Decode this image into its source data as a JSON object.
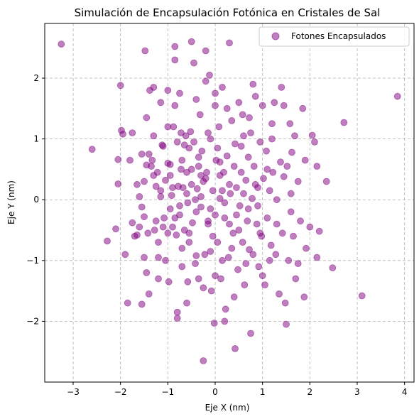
{
  "chart_data": {
    "type": "scatter",
    "title": "Simulación de Encapsulación Fotónica en Cristales de Sal",
    "xlabel": "Eje X (nm)",
    "ylabel": "Eje Y (nm)",
    "xlim": [
      -3.6,
      4.2
    ],
    "ylim": [
      -3.0,
      2.9
    ],
    "xticks": [
      -3,
      -2,
      -1,
      0,
      1,
      2,
      3,
      4
    ],
    "yticks": [
      -2,
      -1,
      0,
      1,
      2
    ],
    "xtick_labels": [
      "−3",
      "−2",
      "−1",
      "0",
      "1",
      "2",
      "3",
      "4"
    ],
    "ytick_labels": [
      "−2",
      "−1",
      "0",
      "1",
      "2"
    ],
    "grid": true,
    "legend": "top-right",
    "series": [
      {
        "name": "Fotones Encapsulados",
        "color": "#800080",
        "alpha": 0.5,
        "points": [
          [
            -3.25,
            2.56
          ],
          [
            -2.6,
            0.83
          ],
          [
            -2.28,
            -0.68
          ],
          [
            -2.1,
            -0.48
          ],
          [
            -2.05,
            0.66
          ],
          [
            -2.05,
            0.26
          ],
          [
            -2.0,
            1.88
          ],
          [
            -1.98,
            1.14
          ],
          [
            -1.95,
            1.08
          ],
          [
            -1.9,
            -0.9
          ],
          [
            -1.85,
            -1.7
          ],
          [
            -1.8,
            0.65
          ],
          [
            -1.75,
            -0.38
          ],
          [
            -1.7,
            -0.6
          ],
          [
            -1.65,
            -0.58
          ],
          [
            -1.65,
            0.25
          ],
          [
            -1.6,
            -0.45
          ],
          [
            -1.55,
            0.75
          ],
          [
            -1.55,
            -0.12
          ],
          [
            -1.55,
            -1.72
          ],
          [
            -1.5,
            -0.28
          ],
          [
            -1.5,
            0.3
          ],
          [
            -1.5,
            -0.95
          ],
          [
            -1.48,
            2.45
          ],
          [
            -1.45,
            1.35
          ],
          [
            -1.45,
            0.57
          ],
          [
            -1.42,
            -0.55
          ],
          [
            -1.4,
            0.75
          ],
          [
            -1.4,
            -1.55
          ],
          [
            -1.38,
            1.8
          ],
          [
            -1.35,
            0.55
          ],
          [
            -1.33,
            0.65
          ],
          [
            -1.3,
            1.85
          ],
          [
            -1.3,
            1.05
          ],
          [
            -1.28,
            -0.5
          ],
          [
            -1.25,
            0.22
          ],
          [
            -1.25,
            -0.35
          ],
          [
            -1.22,
            0.45
          ],
          [
            -1.2,
            -0.7
          ],
          [
            -1.2,
            -1.3
          ],
          [
            -1.15,
            0.05
          ],
          [
            -1.15,
            1.6
          ],
          [
            -1.12,
            0.9
          ],
          [
            -1.1,
            0.88
          ],
          [
            -1.08,
            -0.3
          ],
          [
            -1.05,
            -1.0
          ],
          [
            -1.05,
            0.32
          ],
          [
            -1.0,
            1.8
          ],
          [
            -1.0,
            -0.55
          ],
          [
            -1.0,
            0.6
          ],
          [
            -0.98,
            -1.35
          ],
          [
            -0.95,
            -0.15
          ],
          [
            -0.95,
            0.4
          ],
          [
            -0.92,
            0.07
          ],
          [
            -0.9,
            -0.45
          ],
          [
            -0.88,
            1.2
          ],
          [
            -0.85,
            2.52
          ],
          [
            -0.85,
            2.3
          ],
          [
            -0.85,
            1.55
          ],
          [
            -0.82,
            -0.58
          ],
          [
            -0.8,
            -1.85
          ],
          [
            -0.8,
            0.95
          ],
          [
            -0.78,
            0.22
          ],
          [
            -0.75,
            1.75
          ],
          [
            -0.75,
            -0.25
          ],
          [
            -0.72,
            1.1
          ],
          [
            -0.7,
            0.65
          ],
          [
            -0.7,
            -0.8
          ],
          [
            -0.68,
            0.2
          ],
          [
            -0.65,
            -0.5
          ],
          [
            -0.62,
            1.05
          ],
          [
            -0.6,
            0.45
          ],
          [
            -0.6,
            -1.7
          ],
          [
            -0.58,
            -0.05
          ],
          [
            -0.55,
            0.85
          ],
          [
            -0.55,
            -0.55
          ],
          [
            -0.52,
            1.12
          ],
          [
            -0.5,
            0.25
          ],
          [
            -0.5,
            2.6
          ],
          [
            -0.48,
            -0.38
          ],
          [
            -0.45,
            0.95
          ],
          [
            -0.45,
            2.25
          ],
          [
            -0.42,
            0.0
          ],
          [
            -0.4,
            -0.92
          ],
          [
            -0.38,
            0.18
          ],
          [
            -0.35,
            0.55
          ],
          [
            -0.35,
            -1.3
          ],
          [
            -0.32,
            1.4
          ],
          [
            -0.3,
            -0.12
          ],
          [
            -0.28,
            0.8
          ],
          [
            -0.25,
            -2.65
          ],
          [
            -0.25,
            0.3
          ],
          [
            -0.22,
            -0.9
          ],
          [
            -0.2,
            2.45
          ],
          [
            -0.18,
            0.45
          ],
          [
            -0.15,
            -0.4
          ],
          [
            -0.12,
            2.05
          ],
          [
            -0.1,
            1.0
          ],
          [
            -0.08,
            -1.5
          ],
          [
            -0.05,
            0.15
          ],
          [
            -0.02,
            -2.03
          ],
          [
            0.0,
            1.55
          ],
          [
            0.0,
            -0.25
          ],
          [
            0.02,
            0.65
          ],
          [
            0.05,
            -0.7
          ],
          [
            0.08,
            1.2
          ],
          [
            0.1,
            0.02
          ],
          [
            0.12,
            -1.3
          ],
          [
            0.15,
            1.85
          ],
          [
            0.18,
            0.45
          ],
          [
            0.2,
            -0.3
          ],
          [
            0.22,
            -1.8
          ],
          [
            0.25,
            0.72
          ],
          [
            0.28,
            -0.95
          ],
          [
            0.3,
            2.58
          ],
          [
            0.32,
            0.1
          ],
          [
            0.35,
            1.3
          ],
          [
            0.38,
            -0.55
          ],
          [
            0.4,
            0.55
          ],
          [
            0.42,
            -2.45
          ],
          [
            0.45,
            0.2
          ],
          [
            0.48,
            -1.15
          ],
          [
            0.5,
            1.6
          ],
          [
            0.52,
            -0.1
          ],
          [
            0.55,
            0.88
          ],
          [
            0.58,
            -0.7
          ],
          [
            0.6,
            1.05
          ],
          [
            0.62,
            -1.4
          ],
          [
            0.65,
            0.32
          ],
          [
            0.68,
            -0.35
          ],
          [
            0.7,
            0.7
          ],
          [
            0.72,
            1.35
          ],
          [
            0.75,
            -2.2
          ],
          [
            0.78,
            0.02
          ],
          [
            0.8,
            -0.9
          ],
          [
            0.82,
            0.55
          ],
          [
            0.85,
            1.7
          ],
          [
            0.88,
            -0.4
          ],
          [
            0.9,
            0.2
          ],
          [
            0.92,
            -1.1
          ],
          [
            0.95,
            0.95
          ],
          [
            0.98,
            -0.6
          ],
          [
            1.0,
            1.55
          ],
          [
            1.02,
            0.35
          ],
          [
            1.05,
            -1.4
          ],
          [
            1.08,
            0.8
          ],
          [
            1.1,
            -0.3
          ],
          [
            1.15,
            0.15
          ],
          [
            1.18,
            -0.75
          ],
          [
            1.2,
            1.25
          ],
          [
            1.22,
            0.45
          ],
          [
            1.25,
            1.6
          ],
          [
            1.28,
            -0.9
          ],
          [
            1.3,
            0.0
          ],
          [
            1.35,
            -1.55
          ],
          [
            1.38,
            0.62
          ],
          [
            1.4,
            1.85
          ],
          [
            1.42,
            -0.55
          ],
          [
            1.45,
            0.38
          ],
          [
            1.48,
            -1.7
          ],
          [
            1.5,
            -2.05
          ],
          [
            1.52,
            0.55
          ],
          [
            1.55,
            -1.0
          ],
          [
            1.58,
            1.25
          ],
          [
            1.6,
            -0.2
          ],
          [
            1.62,
            0.78
          ],
          [
            1.65,
            -0.6
          ],
          [
            1.68,
            1.05
          ],
          [
            1.7,
            -1.3
          ],
          [
            1.75,
            0.3
          ],
          [
            1.8,
            -0.35
          ],
          [
            1.85,
            1.5
          ],
          [
            1.88,
            -1.6
          ],
          [
            1.9,
            0.65
          ],
          [
            1.92,
            -0.8
          ],
          [
            2.0,
            -0.45
          ],
          [
            2.05,
            1.06
          ],
          [
            2.1,
            0.95
          ],
          [
            2.15,
            -0.95
          ],
          [
            2.15,
            0.55
          ],
          [
            2.2,
            -0.52
          ],
          [
            2.35,
            0.3
          ],
          [
            2.48,
            -1.12
          ],
          [
            2.72,
            1.27
          ],
          [
            3.1,
            -1.58
          ],
          [
            3.85,
            1.7
          ],
          [
            -0.3,
            0.05
          ],
          [
            -0.2,
            0.35
          ],
          [
            0.1,
            0.4
          ],
          [
            0.2,
            -0.05
          ],
          [
            -0.1,
            -0.15
          ],
          [
            0.3,
            0.25
          ],
          [
            -0.4,
            -0.2
          ],
          [
            0.45,
            -0.25
          ],
          [
            0.6,
            0.1
          ],
          [
            -0.6,
            0.1
          ],
          [
            0.05,
            0.85
          ],
          [
            -0.05,
            -0.6
          ],
          [
            0.35,
            -0.8
          ],
          [
            -0.35,
            0.7
          ],
          [
            0.7,
            -0.15
          ],
          [
            -0.75,
            -0.1
          ],
          [
            0.15,
            -1.0
          ],
          [
            -0.15,
            1.1
          ],
          [
            0.55,
            0.45
          ],
          [
            -0.55,
            -0.7
          ],
          [
            0.9,
            -0.1
          ],
          [
            -0.9,
            0.2
          ],
          [
            0.25,
            1.5
          ],
          [
            -0.25,
            -1.45
          ],
          [
            1.1,
            0.5
          ],
          [
            -1.1,
            -0.45
          ],
          [
            0.4,
            -1.6
          ],
          [
            -0.4,
            1.65
          ],
          [
            0.75,
            1.1
          ],
          [
            -0.7,
            -1.1
          ],
          [
            1.3,
            -0.4
          ],
          [
            -1.3,
            0.4
          ],
          [
            0.5,
            -0.5
          ],
          [
            -0.5,
            0.5
          ],
          [
            0.15,
            0.15
          ],
          [
            -0.15,
            -0.35
          ],
          [
            0.65,
            -1.05
          ],
          [
            -0.65,
            0.9
          ],
          [
            1.0,
            -1.25
          ],
          [
            -1.0,
            1.2
          ],
          [
            0.85,
            0.25
          ],
          [
            -0.85,
            -0.3
          ],
          [
            0.2,
            -2.0
          ],
          [
            -0.2,
            1.95
          ],
          [
            1.2,
            1.0
          ],
          [
            -1.2,
            -0.95
          ],
          [
            0.3,
            -0.4
          ],
          [
            -0.3,
            0.4
          ],
          [
            0.95,
            -0.55
          ],
          [
            -0.95,
            0.58
          ],
          [
            0.1,
            0.62
          ],
          [
            -0.1,
            -0.85
          ],
          [
            0.42,
            0.92
          ],
          [
            -0.42,
            -1.05
          ],
          [
            0.72,
            -0.82
          ],
          [
            -0.72,
            0.5
          ],
          [
            1.15,
            -1.0
          ],
          [
            -1.15,
            0.15
          ],
          [
            0.58,
            1.4
          ],
          [
            -0.58,
            -1.35
          ],
          [
            1.45,
            1.55
          ],
          [
            -1.45,
            -1.2
          ],
          [
            1.6,
            0.1
          ],
          [
            -1.6,
            0.05
          ],
          [
            0.8,
            1.9
          ],
          [
            -0.8,
            -1.95
          ],
          [
            1.75,
            -1.05
          ],
          [
            -1.75,
            1.1
          ],
          [
            0.0,
            -1.25
          ],
          [
            0.0,
            1.75
          ]
        ]
      }
    ]
  }
}
